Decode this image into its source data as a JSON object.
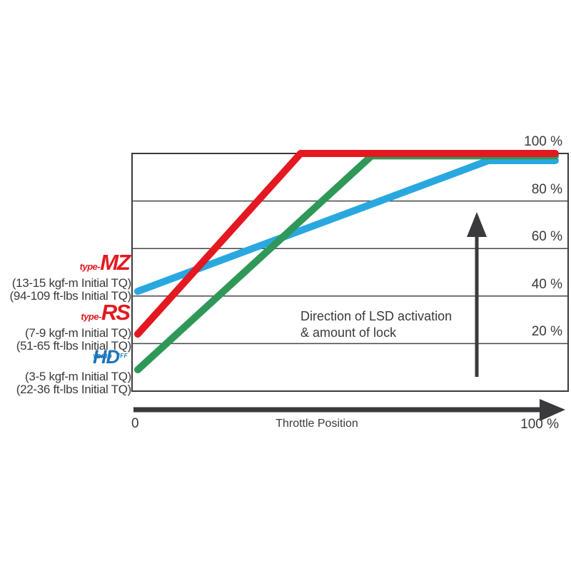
{
  "colors": {
    "mz_line": "#29a8e0",
    "rs_line": "#e41821",
    "hd_line": "#2f9858",
    "logo_red": "#e41821",
    "hd_logo_blue": "#1b75bc",
    "axis_gray": "#3a3a3c",
    "grid_gray": "#464646"
  },
  "chart_data": {
    "type": "line",
    "title": "",
    "xlabel": "Throttle Position",
    "ylabel": "",
    "xlim": [
      0,
      100
    ],
    "ylim": [
      0,
      100
    ],
    "grid": true,
    "x_axis": {
      "start_label": "0",
      "end_label": "100 %"
    },
    "y_ticks": [
      {
        "value": 100,
        "label": "100 %"
      },
      {
        "value": 80,
        "label": "80 %"
      },
      {
        "value": 60,
        "label": "60 %"
      },
      {
        "value": 40,
        "label": "40 %"
      },
      {
        "value": 20,
        "label": "20 %"
      }
    ],
    "annotation": {
      "line1": "Direction of LSD activation",
      "line2": "& amount of lock"
    },
    "series": [
      {
        "name": "type-MZ",
        "color": "#29a8e0",
        "points": [
          [
            0,
            42
          ],
          [
            84,
            97
          ],
          [
            100,
            97
          ]
        ]
      },
      {
        "name": "HYBRID DIFF",
        "color": "#2f9858",
        "points": [
          [
            0,
            9
          ],
          [
            56,
            99
          ],
          [
            100,
            99
          ]
        ]
      },
      {
        "name": "type-RS",
        "color": "#e41821",
        "points": [
          [
            0,
            24
          ],
          [
            39,
            100
          ],
          [
            100,
            100
          ]
        ]
      }
    ],
    "legend_position": "left"
  },
  "legend": {
    "mz": {
      "prefix": "type-",
      "logo": "MZ",
      "line1": "(13-15 kgf-m Initial TQ)",
      "line2": "(94-109 ft-lbs Initial TQ)"
    },
    "rs": {
      "prefix": "type-",
      "logo": "RS",
      "line1": "(7-9 kgf-m Initial TQ)",
      "line2": "(51-65 ft-lbs Initial TQ)"
    },
    "hd": {
      "logo_h": "H",
      "logo_small_top": "YBRID",
      "logo_d": "D",
      "logo_small_right": "IFF",
      "line1": "(3-5 kgf-m Initial TQ)",
      "line2": "(22-36 ft-lbs Initial TQ)"
    }
  }
}
